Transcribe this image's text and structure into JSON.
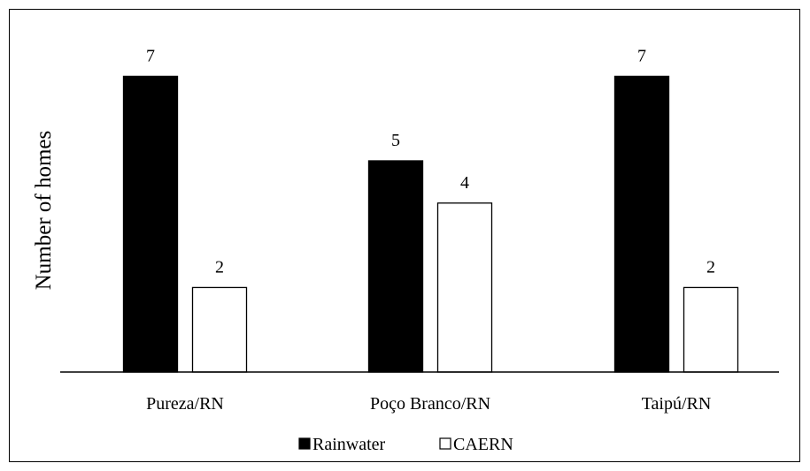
{
  "chart_data": {
    "type": "bar",
    "title": "",
    "xlabel": "",
    "ylabel": "Number of homes",
    "categories": [
      "Pureza/RN",
      "Poço Branco/RN",
      "Taipú/RN"
    ],
    "series": [
      {
        "name": "Rainwater",
        "values": [
          7,
          5,
          7
        ],
        "color": "#000000"
      },
      {
        "name": "CAERN",
        "values": [
          2,
          4,
          2
        ],
        "color": "#ffffff"
      }
    ],
    "data_labels": true,
    "ylim": [
      0,
      8
    ],
    "grid": false,
    "legend_position": "bottom"
  }
}
